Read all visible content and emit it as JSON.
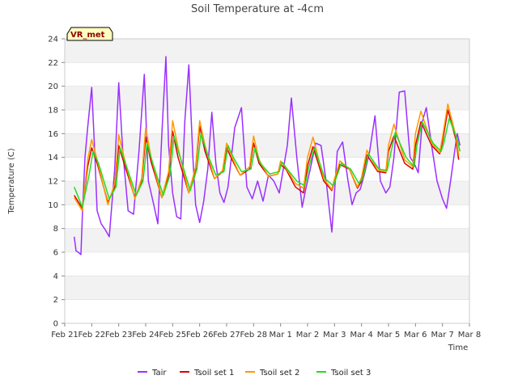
{
  "chart_data": {
    "type": "line",
    "title": "Soil Temperature at -4cm",
    "xlabel": "Time",
    "ylabel": "Temperature (C)",
    "ylim": [
      0,
      24
    ],
    "yticks": [
      0,
      2,
      4,
      6,
      8,
      10,
      12,
      14,
      16,
      18,
      20,
      22,
      24
    ],
    "xlim": [
      0,
      15
    ],
    "x_tick_values": [
      0,
      1,
      2,
      3,
      4,
      5,
      6,
      7,
      8,
      9,
      10,
      11,
      12,
      13,
      14,
      15
    ],
    "x_tick_labels": [
      "Feb 21",
      "Feb 22",
      "Feb 23",
      "Feb 24",
      "Feb 25",
      "Feb 26",
      "Feb 27",
      "Feb 28",
      "Mar 1",
      "Mar 2",
      "Mar 3",
      "Mar 4",
      "Mar 5",
      "Mar 6",
      "Mar 7",
      "Mar 8"
    ],
    "grid": "horizontal bands",
    "legend_position": "bottom",
    "badge": "VR_met",
    "series": [
      {
        "name": "Tair",
        "color": "#9b30ff",
        "x": [
          0.35,
          0.42,
          0.5,
          0.6,
          0.65,
          0.75,
          0.85,
          1.0,
          1.1,
          1.2,
          1.35,
          1.5,
          1.65,
          1.85,
          2.0,
          2.15,
          2.35,
          2.55,
          2.75,
          2.95,
          3.1,
          3.3,
          3.45,
          3.6,
          3.75,
          3.85,
          4.0,
          4.15,
          4.3,
          4.45,
          4.6,
          4.75,
          4.85,
          5.0,
          5.15,
          5.3,
          5.45,
          5.6,
          5.75,
          5.9,
          6.05,
          6.3,
          6.55,
          6.75,
          6.95,
          7.15,
          7.35,
          7.55,
          7.75,
          7.95,
          8.1,
          8.25,
          8.4,
          8.6,
          8.8,
          8.95,
          9.1,
          9.3,
          9.5,
          9.7,
          9.9,
          10.1,
          10.3,
          10.5,
          10.65,
          10.8,
          10.95,
          11.1,
          11.3,
          11.5,
          11.7,
          11.9,
          12.05,
          12.2,
          12.4,
          12.6,
          12.8,
          12.95,
          13.1,
          13.25,
          13.4,
          13.6,
          13.8,
          14.0,
          14.15,
          14.3,
          14.45,
          14.55,
          14.65
        ],
        "values": [
          7.3,
          6.1,
          6.0,
          5.8,
          9.0,
          14.0,
          16.5,
          19.9,
          15.0,
          9.5,
          8.4,
          7.9,
          7.3,
          13.0,
          20.3,
          14.5,
          9.5,
          9.2,
          14.5,
          21.0,
          12.0,
          10.0,
          8.4,
          16.0,
          22.5,
          15.0,
          11.0,
          9.0,
          8.8,
          17.0,
          21.8,
          14.0,
          10.0,
          8.5,
          10.3,
          13.0,
          17.8,
          13.5,
          11.0,
          10.2,
          11.5,
          16.5,
          18.2,
          11.5,
          10.5,
          12.0,
          10.3,
          12.5,
          12.0,
          11.0,
          13.0,
          15.0,
          19.0,
          14.0,
          9.8,
          11.5,
          13.0,
          15.2,
          15.0,
          11.8,
          7.7,
          14.5,
          15.3,
          12.0,
          10.0,
          11.0,
          11.3,
          12.5,
          14.5,
          17.5,
          12.0,
          11.0,
          11.5,
          14.0,
          19.5,
          19.6,
          14.0,
          13.5,
          12.7,
          17.0,
          18.2,
          15.0,
          12.0,
          10.5,
          9.7,
          12.0,
          14.5,
          16.0,
          15.0
        ]
      },
      {
        "name": "Tsoil set 1",
        "color": "#e00000",
        "x": [
          0.35,
          0.65,
          0.85,
          1.0,
          1.2,
          1.6,
          1.85,
          2.0,
          2.2,
          2.6,
          2.85,
          3.0,
          3.2,
          3.6,
          3.85,
          4.0,
          4.2,
          4.6,
          4.85,
          5.0,
          5.2,
          5.55,
          5.85,
          6.0,
          6.2,
          6.5,
          6.85,
          7.0,
          7.2,
          7.55,
          7.9,
          8.0,
          8.2,
          8.55,
          8.85,
          9.0,
          9.2,
          9.6,
          9.9,
          10.0,
          10.2,
          10.55,
          10.85,
          11.0,
          11.2,
          11.6,
          11.9,
          12.0,
          12.2,
          12.6,
          12.9,
          13.0,
          13.2,
          13.6,
          13.9,
          14.0,
          14.2,
          14.5,
          14.6
        ],
        "values": [
          10.8,
          9.7,
          13.2,
          14.8,
          13.5,
          10.2,
          11.5,
          15.0,
          13.5,
          10.6,
          12.0,
          15.7,
          13.6,
          10.6,
          12.5,
          16.2,
          14.0,
          11.0,
          13.0,
          16.6,
          14.5,
          12.2,
          12.8,
          14.8,
          13.8,
          12.5,
          13.0,
          15.2,
          13.5,
          12.4,
          12.6,
          13.4,
          13.0,
          11.5,
          11.0,
          13.3,
          14.9,
          12.0,
          11.2,
          12.0,
          13.4,
          13.0,
          11.4,
          12.0,
          14.2,
          12.8,
          12.7,
          14.5,
          15.8,
          13.5,
          13.0,
          15.0,
          17.0,
          15.0,
          14.3,
          15.3,
          18.0,
          15.5,
          13.8
        ]
      },
      {
        "name": "Tsoil set 2",
        "color": "#ff9900",
        "x": [
          0.35,
          0.65,
          0.85,
          1.0,
          1.2,
          1.6,
          1.85,
          2.0,
          2.2,
          2.6,
          2.85,
          3.0,
          3.2,
          3.6,
          3.85,
          4.0,
          4.2,
          4.6,
          4.85,
          5.0,
          5.2,
          5.55,
          5.85,
          6.0,
          6.2,
          6.5,
          6.85,
          7.0,
          7.2,
          7.55,
          7.9,
          8.0,
          8.2,
          8.55,
          8.85,
          9.0,
          9.2,
          9.6,
          9.9,
          10.0,
          10.2,
          10.55,
          10.85,
          11.0,
          11.2,
          11.6,
          11.9,
          12.0,
          12.2,
          12.6,
          12.9,
          13.0,
          13.2,
          13.6,
          13.9,
          14.0,
          14.2,
          14.5,
          14.6
        ],
        "values": [
          10.6,
          9.5,
          13.8,
          15.5,
          13.8,
          10.0,
          11.8,
          15.9,
          14.0,
          10.5,
          12.2,
          16.5,
          14.0,
          10.6,
          12.8,
          17.1,
          14.8,
          11.0,
          13.2,
          17.1,
          15.0,
          12.2,
          12.9,
          15.2,
          14.0,
          12.5,
          13.2,
          15.8,
          13.8,
          12.4,
          12.6,
          13.7,
          13.1,
          11.8,
          11.4,
          14.0,
          15.7,
          12.2,
          11.3,
          12.2,
          13.7,
          13.0,
          11.5,
          12.3,
          14.6,
          12.9,
          12.8,
          15.0,
          16.8,
          13.8,
          13.2,
          16.0,
          17.9,
          15.2,
          14.4,
          15.7,
          18.5,
          15.8,
          14.2
        ]
      },
      {
        "name": "Tsoil set 3",
        "color": "#22dd22",
        "x": [
          0.35,
          0.65,
          0.9,
          1.05,
          1.25,
          1.65,
          1.9,
          2.05,
          2.25,
          2.65,
          2.9,
          3.05,
          3.25,
          3.65,
          3.9,
          4.05,
          4.25,
          4.65,
          4.9,
          5.05,
          5.25,
          5.6,
          5.9,
          6.05,
          6.25,
          6.55,
          6.9,
          7.05,
          7.25,
          7.6,
          7.95,
          8.05,
          8.25,
          8.6,
          8.9,
          9.05,
          9.25,
          9.65,
          9.95,
          10.05,
          10.25,
          10.6,
          10.9,
          11.05,
          11.25,
          11.65,
          11.95,
          12.05,
          12.25,
          12.65,
          12.95,
          13.05,
          13.25,
          13.65,
          13.95,
          14.05,
          14.25,
          14.55,
          14.65
        ],
        "values": [
          11.5,
          9.8,
          12.5,
          14.5,
          13.5,
          10.5,
          11.5,
          14.8,
          13.5,
          10.8,
          12.0,
          15.2,
          13.6,
          10.8,
          12.5,
          15.8,
          14.2,
          11.2,
          13.0,
          16.0,
          14.5,
          12.5,
          12.8,
          15.0,
          14.0,
          12.8,
          13.0,
          14.8,
          13.5,
          12.6,
          12.8,
          13.6,
          13.0,
          12.0,
          11.6,
          13.2,
          14.8,
          12.2,
          11.6,
          12.2,
          13.5,
          13.0,
          11.8,
          12.2,
          14.3,
          13.0,
          12.9,
          14.0,
          16.1,
          14.0,
          13.2,
          15.0,
          17.0,
          15.2,
          14.5,
          15.2,
          17.3,
          15.5,
          14.5
        ]
      }
    ]
  }
}
